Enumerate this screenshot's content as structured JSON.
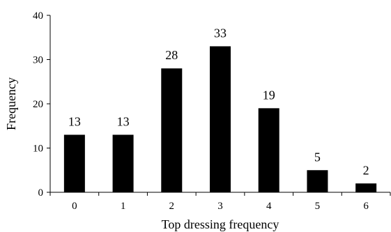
{
  "chart_data": {
    "type": "bar",
    "categories": [
      "0",
      "1",
      "2",
      "3",
      "4",
      "5",
      "6"
    ],
    "values": [
      13,
      13,
      28,
      33,
      19,
      5,
      2
    ],
    "xlabel": "Top dressing frequency",
    "ylabel": "Frequency",
    "ylim": [
      0,
      40
    ],
    "yticks": [
      0,
      10,
      20,
      30,
      40
    ],
    "grid": false,
    "bar_color": "#000000",
    "data_labels": true
  }
}
